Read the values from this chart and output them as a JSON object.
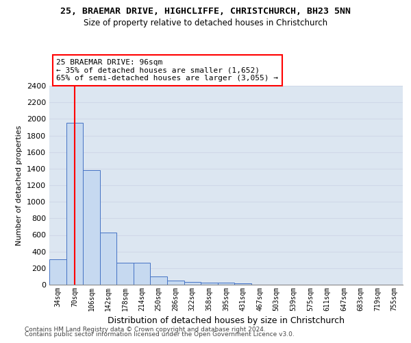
{
  "title1": "25, BRAEMAR DRIVE, HIGHCLIFFE, CHRISTCHURCH, BH23 5NN",
  "title2": "Size of property relative to detached houses in Christchurch",
  "xlabel": "Distribution of detached houses by size in Christchurch",
  "ylabel": "Number of detached properties",
  "categories": [
    "34sqm",
    "70sqm",
    "106sqm",
    "142sqm",
    "178sqm",
    "214sqm",
    "250sqm",
    "286sqm",
    "322sqm",
    "358sqm",
    "395sqm",
    "431sqm",
    "467sqm",
    "503sqm",
    "539sqm",
    "575sqm",
    "611sqm",
    "647sqm",
    "683sqm",
    "719sqm",
    "755sqm"
  ],
  "values": [
    310,
    1950,
    1380,
    630,
    265,
    265,
    100,
    50,
    35,
    25,
    25,
    20,
    0,
    0,
    0,
    0,
    0,
    0,
    0,
    0,
    0
  ],
  "bar_color": "#c6d9f0",
  "bar_edge_color": "#4472c4",
  "grid_color": "#d0d8e8",
  "background_color": "#dce6f1",
  "annotation_line1": "25 BRAEMAR DRIVE: 96sqm",
  "annotation_line2": "← 35% of detached houses are smaller (1,652)",
  "annotation_line3": "65% of semi-detached houses are larger (3,055) →",
  "vline_x": 1,
  "ylim": [
    0,
    2400
  ],
  "yticks": [
    0,
    200,
    400,
    600,
    800,
    1000,
    1200,
    1400,
    1600,
    1800,
    2000,
    2200,
    2400
  ],
  "footnote1": "Contains HM Land Registry data © Crown copyright and database right 2024.",
  "footnote2": "Contains public sector information licensed under the Open Government Licence v3.0."
}
